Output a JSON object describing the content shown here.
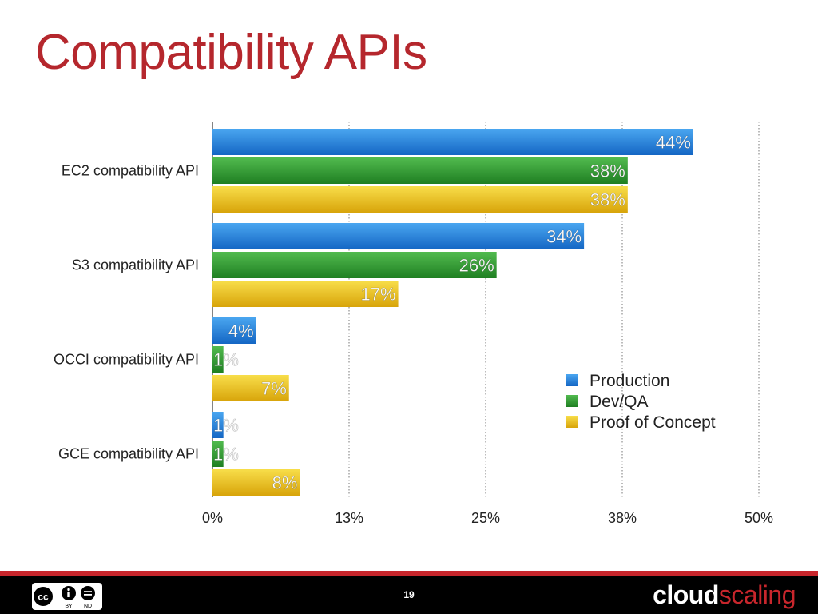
{
  "title": "Compatibility APIs",
  "colors": {
    "title": "#b5272d",
    "production": "#1f7fdc",
    "devqa": "#2f9a31",
    "poc": "#e9bd1b",
    "footer_accent": "#c8262c"
  },
  "chart_data": {
    "type": "bar",
    "orientation": "horizontal",
    "categories": [
      "EC2 compatibility API",
      "S3 compatibility API",
      "OCCI compatibility API",
      "GCE compatibility API"
    ],
    "series": [
      {
        "name": "Production",
        "values": [
          44,
          34,
          4,
          1
        ],
        "labels": [
          "44%",
          "34%",
          "4%",
          "1%"
        ],
        "color": "#1f7fdc"
      },
      {
        "name": "Dev/QA",
        "values": [
          38,
          26,
          1,
          1
        ],
        "labels": [
          "38%",
          "26%",
          "1%",
          "1%"
        ],
        "color": "#2f9a31"
      },
      {
        "name": "Proof of Concept",
        "values": [
          38,
          17,
          7,
          8
        ],
        "labels": [
          "38%",
          "17%",
          "7%",
          "8%"
        ],
        "color": "#e9bd1b"
      }
    ],
    "x_ticks": [
      0,
      12.5,
      25,
      37.5,
      50
    ],
    "x_tick_labels": [
      "0%",
      "13%",
      "25%",
      "38%",
      "50%"
    ],
    "xlim": [
      0,
      50
    ],
    "grid": "vertical-dotted",
    "legend_position": "bottom-right"
  },
  "footer": {
    "page_number": "19",
    "license": {
      "cc": "cc",
      "by": "BY",
      "nd": "ND"
    },
    "brand_part1": "cloud",
    "brand_part2": "scaling"
  }
}
